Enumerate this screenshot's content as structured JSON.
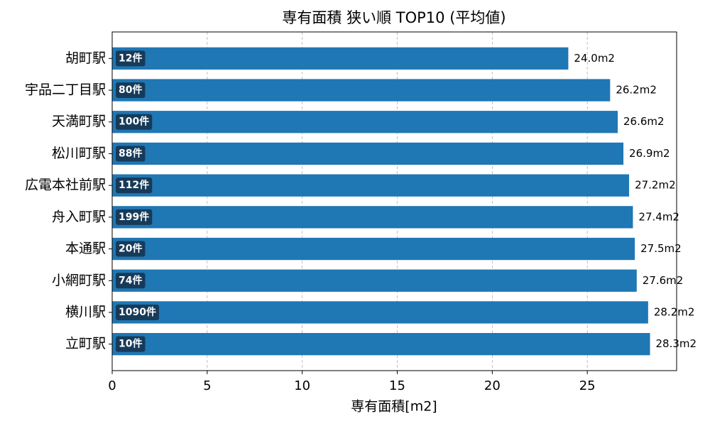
{
  "chart_data": {
    "type": "barh",
    "title": "専有面積 狭い順 TOP10 (平均値)",
    "xlabel": "専有面積[m2]",
    "categories": [
      "胡町駅",
      "宇品二丁目駅",
      "天満町駅",
      "松川町駅",
      "広電本社前駅",
      "舟入町駅",
      "本通駅",
      "小網町駅",
      "横川駅",
      "立町駅"
    ],
    "values": [
      24.0,
      26.2,
      26.6,
      26.9,
      27.2,
      27.4,
      27.5,
      27.6,
      28.2,
      28.3
    ],
    "value_labels": [
      "24.0m2",
      "26.2m2",
      "26.6m2",
      "26.9m2",
      "27.2m2",
      "27.4m2",
      "27.5m2",
      "27.6m2",
      "28.2m2",
      "28.3m2"
    ],
    "count_labels": [
      "12件",
      "80件",
      "100件",
      "88件",
      "112件",
      "199件",
      "20件",
      "74件",
      "1090件",
      "10件"
    ],
    "color": "#1f77b4",
    "count_label_color": "#173a59",
    "xlim": [
      0,
      29.7
    ],
    "xticks": [
      0,
      5,
      10,
      15,
      20,
      25
    ],
    "grid": true
  }
}
